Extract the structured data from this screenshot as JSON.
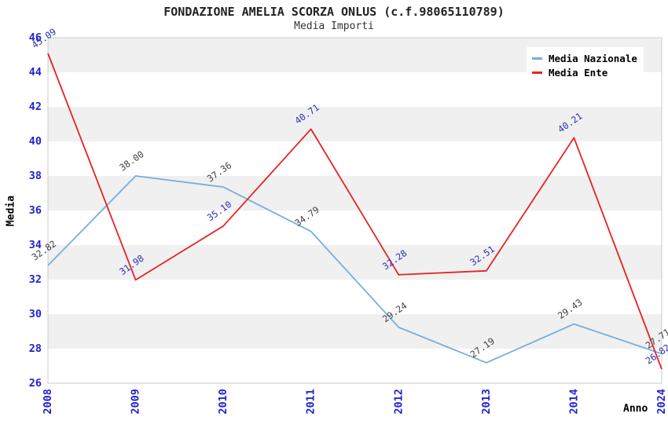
{
  "title": "FONDAZIONE AMELIA SCORZA ONLUS (c.f.98065110789)",
  "subtitle": "Media Importi",
  "chart_data": {
    "type": "line",
    "title": "FONDAZIONE AMELIA SCORZA ONLUS (c.f.98065110789)",
    "subtitle": "Media Importi",
    "xlabel": "Anno",
    "ylabel": "Media",
    "categories": [
      "2008",
      "2009",
      "2010",
      "2011",
      "2012",
      "2013",
      "2014",
      "2024"
    ],
    "series": [
      {
        "name": "Media Nazionale",
        "color": "#77aede",
        "label_color": "#404040",
        "values": [
          32.82,
          38.0,
          37.36,
          34.79,
          29.24,
          27.19,
          29.43,
          27.71
        ]
      },
      {
        "name": "Media Ente",
        "color": "#e82222",
        "label_color": "#2d2db4",
        "values": [
          45.09,
          31.98,
          35.1,
          40.71,
          32.28,
          32.51,
          40.21,
          26.82
        ]
      }
    ],
    "ylim": [
      26,
      46
    ],
    "ytick_step": 2,
    "yticks": [
      26,
      28,
      30,
      32,
      34,
      36,
      38,
      40,
      42,
      44,
      46
    ],
    "grid": "alternating-horizontal-bands",
    "band_color": "#f0f0f0",
    "plot_border_color": "#cccccc",
    "tick_label_color": "#2222cc",
    "legend_position": "top-right",
    "legend_entries": [
      "Media Nazionale",
      "Media Ente"
    ]
  }
}
